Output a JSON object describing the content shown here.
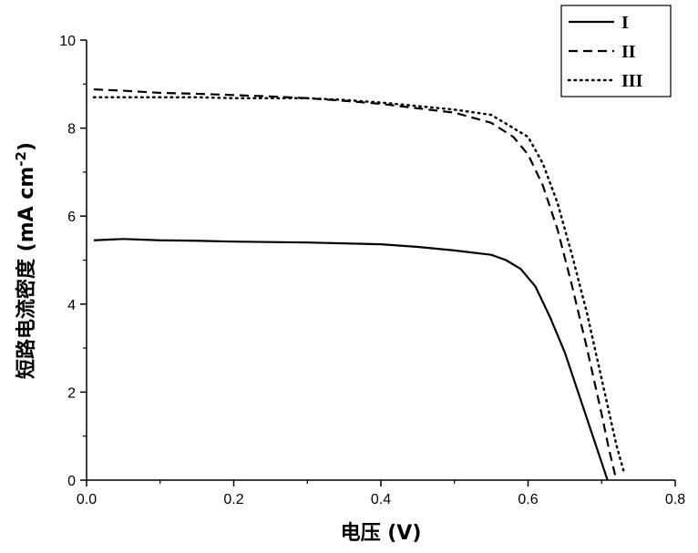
{
  "chart_data": {
    "type": "line",
    "xlabel": "电压 (V)",
    "ylabel": "短路电流密度 (mA cm-2)",
    "ylabel_parts": {
      "main": "短路电流密度 (mA cm",
      "sup": "-2",
      "end": ")"
    },
    "xlim": [
      0.0,
      0.8
    ],
    "ylim": [
      0,
      10
    ],
    "xticks": [
      0.0,
      0.2,
      0.4,
      0.6,
      0.8
    ],
    "xtick_labels": [
      "0.0",
      "0.2",
      "0.4",
      "0.6",
      "0.8"
    ],
    "yticks": [
      0,
      2,
      4,
      6,
      8,
      10
    ],
    "ytick_labels": [
      "0",
      "2",
      "4",
      "6",
      "8",
      "10"
    ],
    "grid": false,
    "legend_position": "top-right",
    "series": [
      {
        "name": "I",
        "style": "solid",
        "color": "#000000",
        "x": [
          0.01,
          0.05,
          0.1,
          0.15,
          0.2,
          0.25,
          0.3,
          0.35,
          0.4,
          0.45,
          0.5,
          0.55,
          0.57,
          0.59,
          0.61,
          0.63,
          0.65,
          0.67,
          0.69,
          0.7,
          0.708
        ],
        "y": [
          5.45,
          5.48,
          5.45,
          5.44,
          5.42,
          5.41,
          5.4,
          5.38,
          5.36,
          5.3,
          5.22,
          5.12,
          5.0,
          4.8,
          4.4,
          3.7,
          2.9,
          1.9,
          0.9,
          0.4,
          0.0
        ]
      },
      {
        "name": "II",
        "style": "dashed",
        "color": "#000000",
        "x": [
          0.01,
          0.05,
          0.1,
          0.15,
          0.2,
          0.25,
          0.3,
          0.35,
          0.4,
          0.45,
          0.5,
          0.55,
          0.58,
          0.6,
          0.62,
          0.64,
          0.66,
          0.68,
          0.7,
          0.71,
          0.72
        ],
        "y": [
          8.88,
          8.85,
          8.8,
          8.78,
          8.75,
          8.72,
          8.68,
          8.62,
          8.55,
          8.45,
          8.35,
          8.12,
          7.8,
          7.4,
          6.7,
          5.7,
          4.4,
          3.0,
          1.5,
          0.7,
          0.0
        ]
      },
      {
        "name": "III",
        "style": "dotted",
        "color": "#000000",
        "x": [
          0.01,
          0.05,
          0.1,
          0.15,
          0.2,
          0.25,
          0.3,
          0.35,
          0.4,
          0.45,
          0.5,
          0.55,
          0.6,
          0.62,
          0.64,
          0.66,
          0.68,
          0.7,
          0.72,
          0.73
        ],
        "y": [
          8.7,
          8.7,
          8.7,
          8.7,
          8.68,
          8.68,
          8.68,
          8.64,
          8.58,
          8.5,
          8.42,
          8.3,
          7.8,
          7.2,
          6.3,
          5.1,
          3.8,
          2.3,
          0.8,
          0.2
        ]
      }
    ]
  }
}
